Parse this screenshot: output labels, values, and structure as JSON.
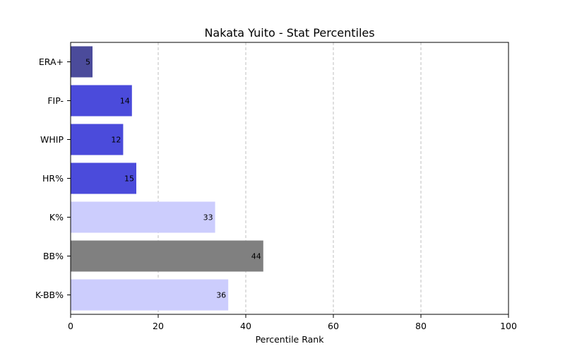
{
  "chart_data": {
    "type": "bar",
    "orientation": "horizontal",
    "title": "Nakata Yuito - Stat Percentiles",
    "xlabel": "Percentile Rank",
    "ylabel": "",
    "xlim": [
      0,
      100
    ],
    "xticks": [
      0,
      20,
      40,
      60,
      80,
      100
    ],
    "grid": "x, dashed",
    "categories": [
      "ERA+",
      "FIP-",
      "WHIP",
      "HR%",
      "K%",
      "BB%",
      "K-BB%"
    ],
    "values": [
      5,
      14,
      12,
      15,
      33,
      44,
      36
    ],
    "colors": [
      "#4b4b9b",
      "#4b4bdb",
      "#4b4bdb",
      "#4b4bdb",
      "#cccdfd",
      "#808080",
      "#cccdfd"
    ]
  }
}
